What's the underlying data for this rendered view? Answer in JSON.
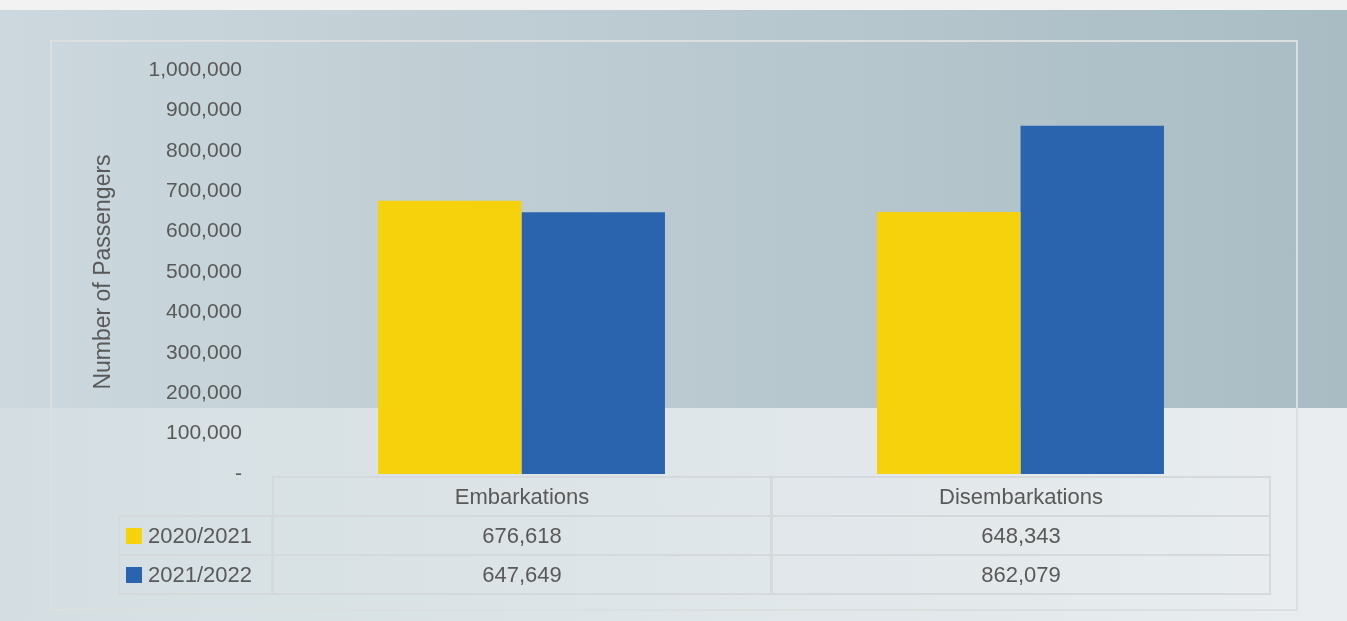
{
  "chart_data": {
    "type": "bar",
    "ylabel": "Number of Passengers",
    "categories": [
      "Embarkations",
      "Disembarkations"
    ],
    "series": [
      {
        "name": "2020/2021",
        "color": "#f6d20c",
        "values": [
          676618,
          648343
        ],
        "value_labels": [
          "676,618",
          "648,343"
        ]
      },
      {
        "name": "2021/2022",
        "color": "#2a64ae",
        "values": [
          647649,
          862079
        ],
        "value_labels": [
          "647,649",
          "862,079"
        ]
      }
    ],
    "ylim": [
      0,
      1000000
    ],
    "yticks": [
      {
        "value": 0,
        "label": "-"
      },
      {
        "value": 100000,
        "label": "100,000"
      },
      {
        "value": 200000,
        "label": "200,000"
      },
      {
        "value": 300000,
        "label": "300,000"
      },
      {
        "value": 400000,
        "label": "400,000"
      },
      {
        "value": 500000,
        "label": "500,000"
      },
      {
        "value": 600000,
        "label": "600,000"
      },
      {
        "value": 700000,
        "label": "700,000"
      },
      {
        "value": 800000,
        "label": "800,000"
      },
      {
        "value": 900000,
        "label": "900,000"
      },
      {
        "value": 1000000,
        "label": "1,000,000"
      }
    ],
    "legend": "bottom left"
  }
}
